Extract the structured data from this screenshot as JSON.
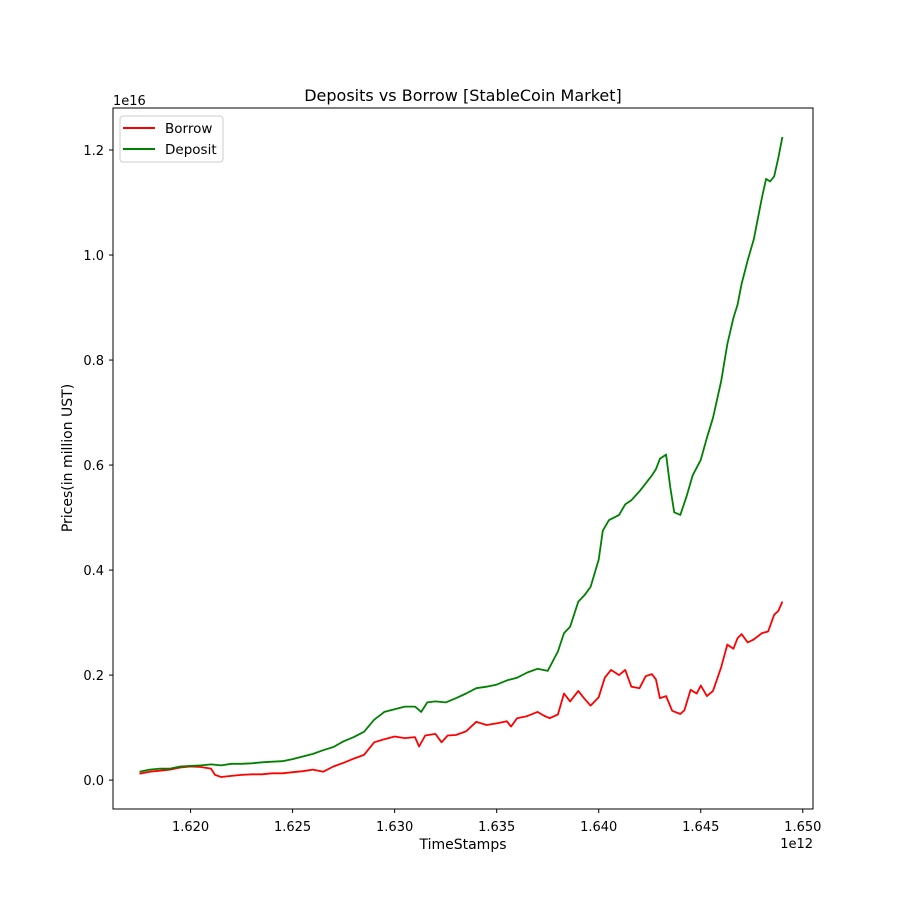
{
  "chart_data": {
    "type": "line",
    "title": "Deposits vs Borrow [StableCoin Market]",
    "xlabel": "TimeStamps",
    "ylabel": "Prices(in million UST)",
    "x_offset_label": "1e12",
    "y_offset_label": "1e16",
    "xlim": [
      1.6162,
      1.6505
    ],
    "ylim": [
      -0.055,
      1.28
    ],
    "x_ticks": [
      "1.620",
      "1.625",
      "1.630",
      "1.635",
      "1.640",
      "1.645",
      "1.650"
    ],
    "x_tick_values": [
      1.62,
      1.625,
      1.63,
      1.635,
      1.64,
      1.645,
      1.65
    ],
    "y_ticks": [
      "0.0",
      "0.2",
      "0.4",
      "0.6",
      "0.8",
      "1.0",
      "1.2"
    ],
    "y_tick_values": [
      0.0,
      0.2,
      0.4,
      0.6,
      0.8,
      1.0,
      1.2
    ],
    "legend_position": "top-left",
    "grid": false,
    "series": [
      {
        "name": "Borrow",
        "color": "#ff0000",
        "points": [
          [
            1.6175,
            0.012
          ],
          [
            1.618,
            0.016
          ],
          [
            1.6185,
            0.018
          ],
          [
            1.619,
            0.02
          ],
          [
            1.6195,
            0.024
          ],
          [
            1.62,
            0.026
          ],
          [
            1.6205,
            0.025
          ],
          [
            1.621,
            0.022
          ],
          [
            1.6212,
            0.01
          ],
          [
            1.6215,
            0.006
          ],
          [
            1.622,
            0.008
          ],
          [
            1.6225,
            0.01
          ],
          [
            1.623,
            0.011
          ],
          [
            1.6235,
            0.011
          ],
          [
            1.624,
            0.013
          ],
          [
            1.6245,
            0.013
          ],
          [
            1.625,
            0.015
          ],
          [
            1.6255,
            0.017
          ],
          [
            1.626,
            0.02
          ],
          [
            1.6265,
            0.016
          ],
          [
            1.627,
            0.026
          ],
          [
            1.6275,
            0.033
          ],
          [
            1.628,
            0.041
          ],
          [
            1.6285,
            0.048
          ],
          [
            1.629,
            0.072
          ],
          [
            1.6295,
            0.078
          ],
          [
            1.63,
            0.083
          ],
          [
            1.6305,
            0.08
          ],
          [
            1.631,
            0.082
          ],
          [
            1.6312,
            0.064
          ],
          [
            1.6315,
            0.085
          ],
          [
            1.632,
            0.088
          ],
          [
            1.6323,
            0.072
          ],
          [
            1.6326,
            0.085
          ],
          [
            1.633,
            0.086
          ],
          [
            1.6335,
            0.093
          ],
          [
            1.634,
            0.111
          ],
          [
            1.6345,
            0.105
          ],
          [
            1.635,
            0.108
          ],
          [
            1.6355,
            0.112
          ],
          [
            1.6357,
            0.102
          ],
          [
            1.636,
            0.118
          ],
          [
            1.6365,
            0.122
          ],
          [
            1.637,
            0.13
          ],
          [
            1.6373,
            0.123
          ],
          [
            1.6376,
            0.118
          ],
          [
            1.638,
            0.125
          ],
          [
            1.6383,
            0.165
          ],
          [
            1.6386,
            0.15
          ],
          [
            1.639,
            0.17
          ],
          [
            1.6393,
            0.155
          ],
          [
            1.6396,
            0.142
          ],
          [
            1.64,
            0.158
          ],
          [
            1.6403,
            0.195
          ],
          [
            1.6406,
            0.21
          ],
          [
            1.641,
            0.2
          ],
          [
            1.6413,
            0.21
          ],
          [
            1.6416,
            0.178
          ],
          [
            1.642,
            0.175
          ],
          [
            1.6423,
            0.198
          ],
          [
            1.6426,
            0.202
          ],
          [
            1.6428,
            0.192
          ],
          [
            1.643,
            0.156
          ],
          [
            1.6433,
            0.16
          ],
          [
            1.6436,
            0.132
          ],
          [
            1.644,
            0.126
          ],
          [
            1.6442,
            0.133
          ],
          [
            1.6445,
            0.172
          ],
          [
            1.6448,
            0.165
          ],
          [
            1.645,
            0.18
          ],
          [
            1.6453,
            0.16
          ],
          [
            1.6456,
            0.17
          ],
          [
            1.646,
            0.215
          ],
          [
            1.6463,
            0.258
          ],
          [
            1.6466,
            0.25
          ],
          [
            1.6468,
            0.27
          ],
          [
            1.647,
            0.278
          ],
          [
            1.6473,
            0.262
          ],
          [
            1.6476,
            0.268
          ],
          [
            1.648,
            0.28
          ],
          [
            1.6483,
            0.283
          ],
          [
            1.6486,
            0.315
          ],
          [
            1.6488,
            0.322
          ],
          [
            1.649,
            0.34
          ]
        ]
      },
      {
        "name": "Deposit",
        "color": "#008000",
        "points": [
          [
            1.6175,
            0.016
          ],
          [
            1.618,
            0.02
          ],
          [
            1.6185,
            0.022
          ],
          [
            1.619,
            0.022
          ],
          [
            1.6195,
            0.026
          ],
          [
            1.62,
            0.027
          ],
          [
            1.6205,
            0.028
          ],
          [
            1.621,
            0.03
          ],
          [
            1.6215,
            0.028
          ],
          [
            1.622,
            0.031
          ],
          [
            1.6225,
            0.031
          ],
          [
            1.623,
            0.032
          ],
          [
            1.6235,
            0.034
          ],
          [
            1.624,
            0.035
          ],
          [
            1.6245,
            0.036
          ],
          [
            1.625,
            0.04
          ],
          [
            1.6255,
            0.045
          ],
          [
            1.626,
            0.05
          ],
          [
            1.6265,
            0.057
          ],
          [
            1.627,
            0.063
          ],
          [
            1.6275,
            0.074
          ],
          [
            1.628,
            0.082
          ],
          [
            1.6285,
            0.092
          ],
          [
            1.629,
            0.115
          ],
          [
            1.6295,
            0.13
          ],
          [
            1.63,
            0.135
          ],
          [
            1.6305,
            0.14
          ],
          [
            1.631,
            0.14
          ],
          [
            1.6313,
            0.13
          ],
          [
            1.6316,
            0.148
          ],
          [
            1.632,
            0.15
          ],
          [
            1.6325,
            0.148
          ],
          [
            1.633,
            0.156
          ],
          [
            1.6335,
            0.165
          ],
          [
            1.634,
            0.175
          ],
          [
            1.6345,
            0.178
          ],
          [
            1.635,
            0.182
          ],
          [
            1.6355,
            0.19
          ],
          [
            1.636,
            0.195
          ],
          [
            1.6365,
            0.205
          ],
          [
            1.637,
            0.212
          ],
          [
            1.6375,
            0.208
          ],
          [
            1.638,
            0.245
          ],
          [
            1.6383,
            0.28
          ],
          [
            1.6386,
            0.292
          ],
          [
            1.639,
            0.34
          ],
          [
            1.6393,
            0.352
          ],
          [
            1.6396,
            0.368
          ],
          [
            1.64,
            0.42
          ],
          [
            1.6402,
            0.475
          ],
          [
            1.6405,
            0.495
          ],
          [
            1.641,
            0.505
          ],
          [
            1.6413,
            0.525
          ],
          [
            1.6416,
            0.533
          ],
          [
            1.642,
            0.55
          ],
          [
            1.6423,
            0.565
          ],
          [
            1.6426,
            0.58
          ],
          [
            1.6428,
            0.592
          ],
          [
            1.643,
            0.612
          ],
          [
            1.6433,
            0.62
          ],
          [
            1.6435,
            0.56
          ],
          [
            1.6437,
            0.51
          ],
          [
            1.644,
            0.505
          ],
          [
            1.6443,
            0.54
          ],
          [
            1.6446,
            0.58
          ],
          [
            1.645,
            0.61
          ],
          [
            1.6453,
            0.652
          ],
          [
            1.6456,
            0.69
          ],
          [
            1.646,
            0.76
          ],
          [
            1.6463,
            0.83
          ],
          [
            1.6466,
            0.88
          ],
          [
            1.6468,
            0.905
          ],
          [
            1.647,
            0.945
          ],
          [
            1.6473,
            0.99
          ],
          [
            1.6476,
            1.03
          ],
          [
            1.6478,
            1.07
          ],
          [
            1.648,
            1.11
          ],
          [
            1.6482,
            1.145
          ],
          [
            1.6484,
            1.14
          ],
          [
            1.6486,
            1.15
          ],
          [
            1.6488,
            1.185
          ],
          [
            1.649,
            1.225
          ]
        ]
      }
    ]
  }
}
